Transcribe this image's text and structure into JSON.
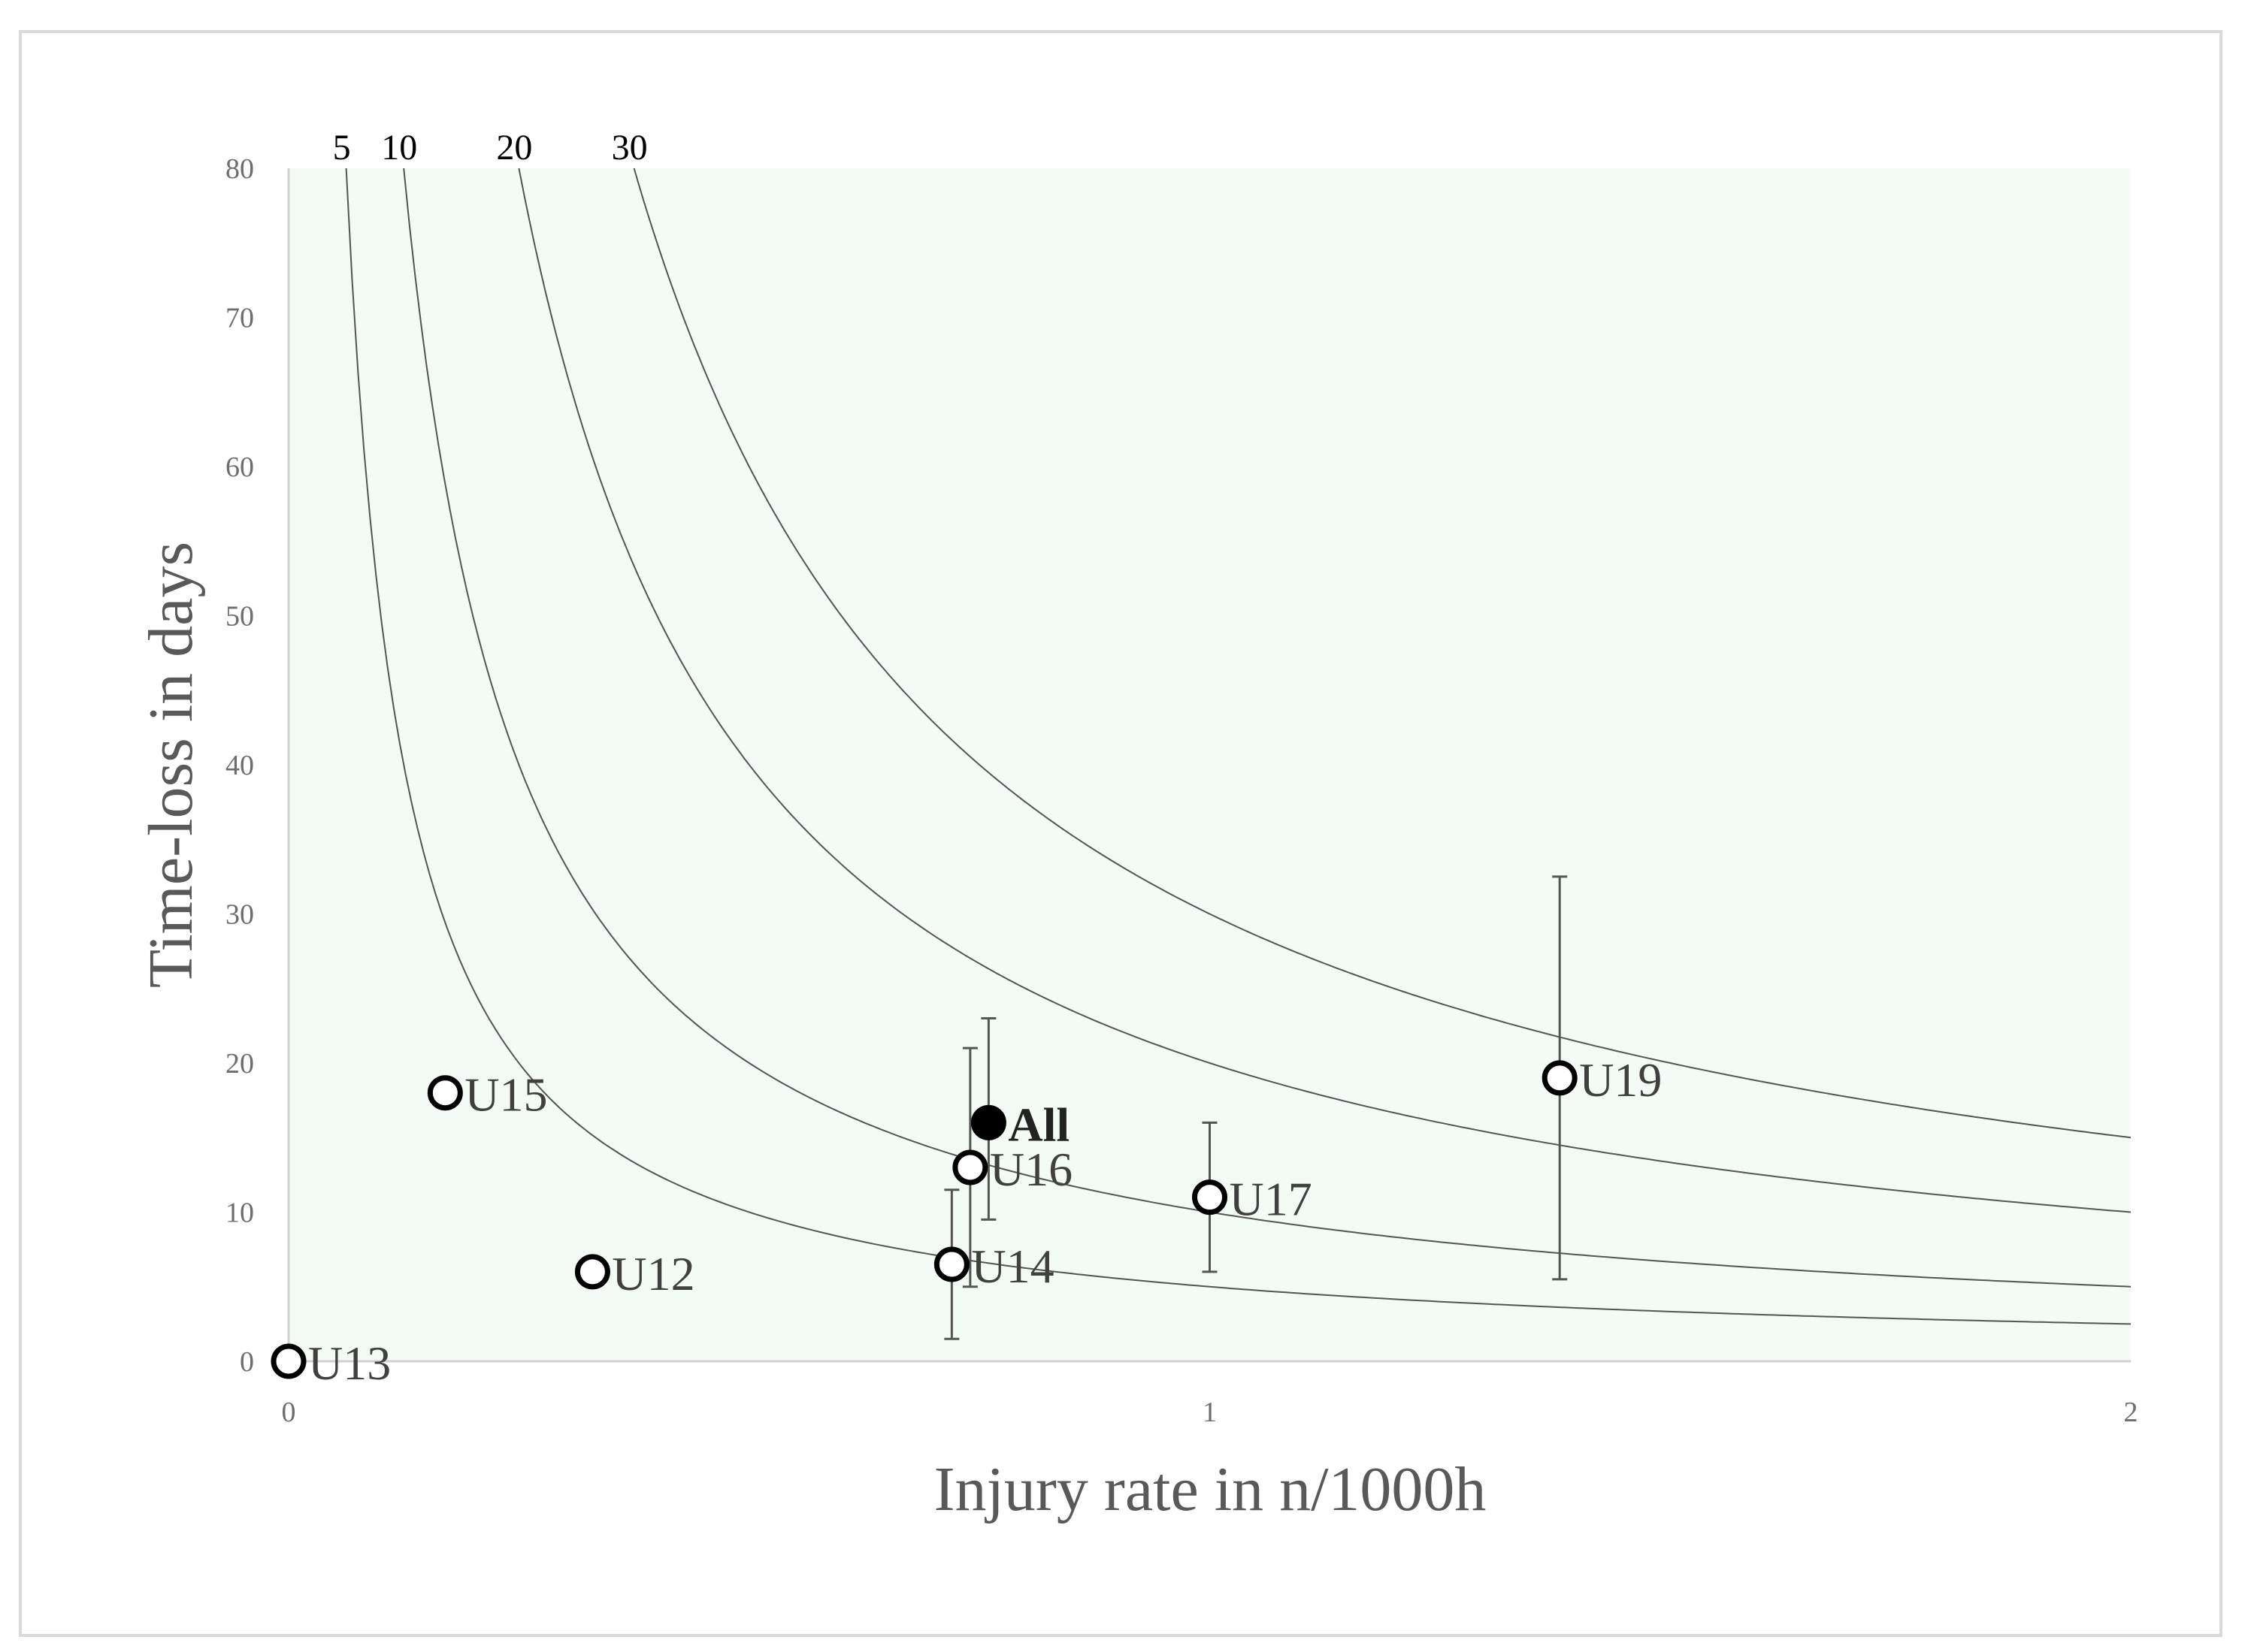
{
  "chart_data": {
    "type": "scatter",
    "title": "",
    "xlabel": "Injury rate in n/1000h",
    "ylabel": "Time-loss in days",
    "xlim": [
      0,
      2
    ],
    "ylim": [
      0,
      80
    ],
    "x_ticks": [
      "0",
      "1",
      "2"
    ],
    "y_ticks": [
      "0",
      "10",
      "20",
      "30",
      "40",
      "50",
      "60",
      "70",
      "80"
    ],
    "grid": false,
    "legend": "none",
    "plot_background": "#f4faf4",
    "burden_curves": {
      "description_values": [
        5,
        10,
        20,
        30
      ],
      "labels": [
        "5",
        "10",
        "20",
        "30"
      ]
    },
    "points": [
      {
        "label": "U13",
        "x": 0.0,
        "y": 0.0,
        "filled": false
      },
      {
        "label": "U15",
        "x": 0.17,
        "y": 18.0,
        "filled": false
      },
      {
        "label": "U12",
        "x": 0.33,
        "y": 6.0,
        "filled": false
      },
      {
        "label": "U14",
        "x": 0.72,
        "y": 6.5,
        "filled": false,
        "err_low": 1.5,
        "err_high": 11.5
      },
      {
        "label": "U16",
        "x": 0.74,
        "y": 13.0,
        "filled": false,
        "err_low": 5.0,
        "err_high": 21.0
      },
      {
        "label": "All",
        "x": 0.76,
        "y": 16.0,
        "filled": true,
        "bold": true,
        "err_low": 9.5,
        "err_high": 23.0
      },
      {
        "label": "U17",
        "x": 1.0,
        "y": 11.0,
        "filled": false,
        "err_low": 6.0,
        "err_high": 16.0
      },
      {
        "label": "U19",
        "x": 1.38,
        "y": 19.0,
        "filled": false,
        "err_low": 5.5,
        "err_high": 32.5
      }
    ]
  }
}
